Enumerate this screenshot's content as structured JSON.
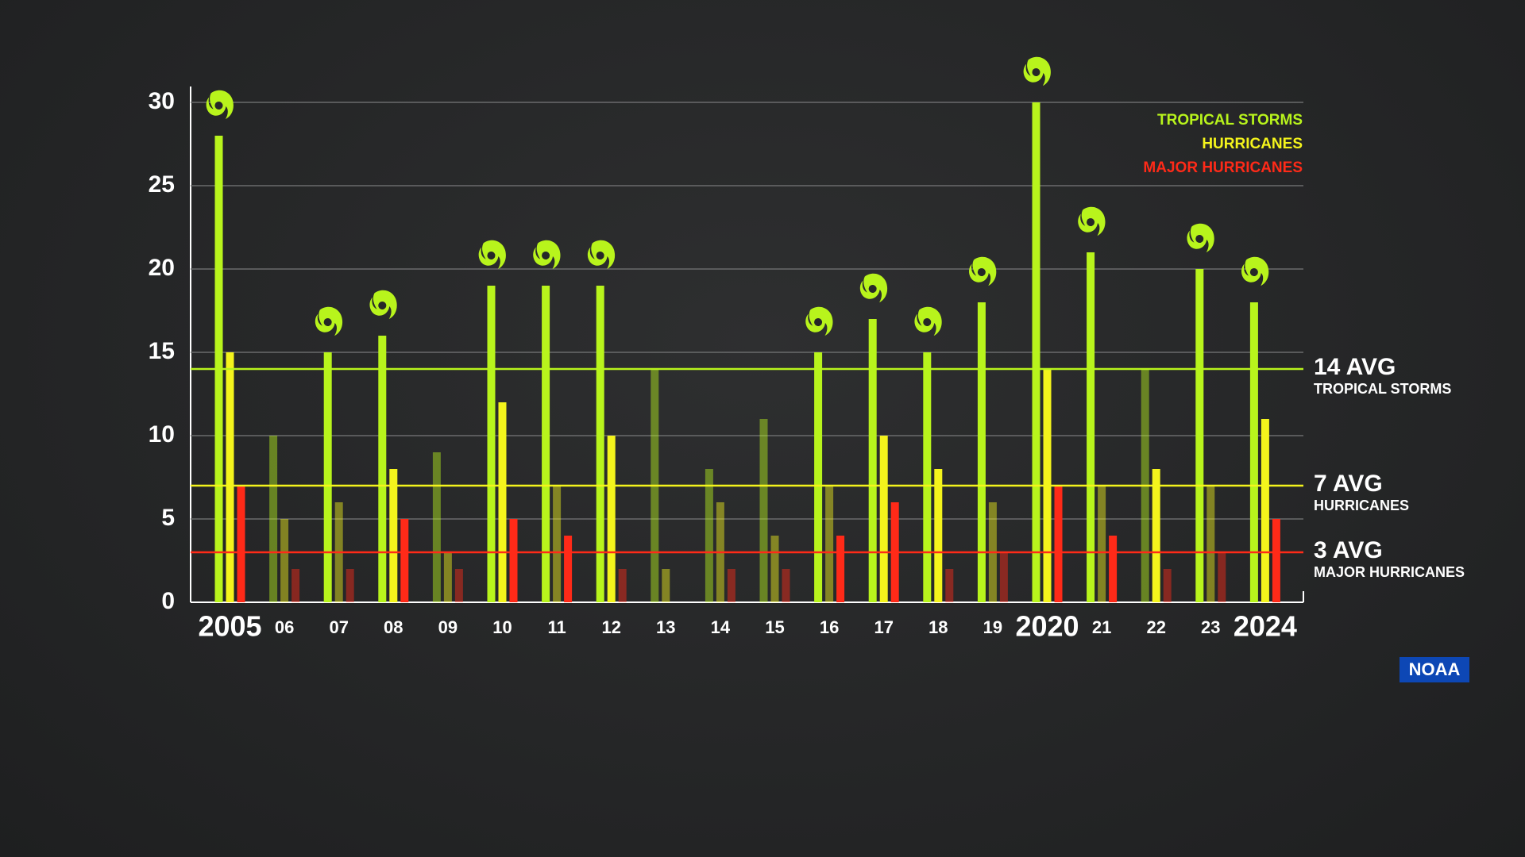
{
  "chart_data": {
    "type": "bar",
    "categories": [
      "2005",
      "06",
      "07",
      "08",
      "09",
      "10",
      "11",
      "12",
      "13",
      "14",
      "15",
      "16",
      "17",
      "18",
      "19",
      "2020",
      "21",
      "22",
      "23",
      "2024"
    ],
    "series": [
      {
        "name": "TROPICAL STORMS",
        "color": "#b8f41c",
        "values": [
          28,
          10,
          15,
          16,
          9,
          19,
          19,
          19,
          14,
          8,
          11,
          15,
          17,
          15,
          18,
          30,
          21,
          14,
          20,
          18
        ]
      },
      {
        "name": "HURRICANES",
        "color": "#f4f41c",
        "values": [
          15,
          5,
          6,
          8,
          3,
          12,
          7,
          10,
          2,
          6,
          4,
          7,
          10,
          8,
          6,
          14,
          7,
          8,
          7,
          11
        ]
      },
      {
        "name": "MAJOR HURRICANES",
        "color": "#ff2a18",
        "values": [
          7,
          2,
          2,
          5,
          2,
          5,
          4,
          2,
          0,
          2,
          2,
          4,
          6,
          2,
          3,
          7,
          4,
          2,
          3,
          5
        ]
      }
    ],
    "averages": [
      {
        "value": 14,
        "label": "14 AVG",
        "name": "TROPICAL STORMS",
        "color": "#b8f41c"
      },
      {
        "value": 7,
        "label": "7 AVG",
        "name": "HURRICANES",
        "color": "#f4f41c"
      },
      {
        "value": 3,
        "label": "3 AVG",
        "name": "MAJOR HURRICANES",
        "color": "#ff2a18"
      }
    ],
    "ylim": [
      0,
      30
    ],
    "yticks": [
      0,
      5,
      10,
      15,
      20,
      25,
      30
    ],
    "grid": true,
    "source": "NOAA"
  }
}
